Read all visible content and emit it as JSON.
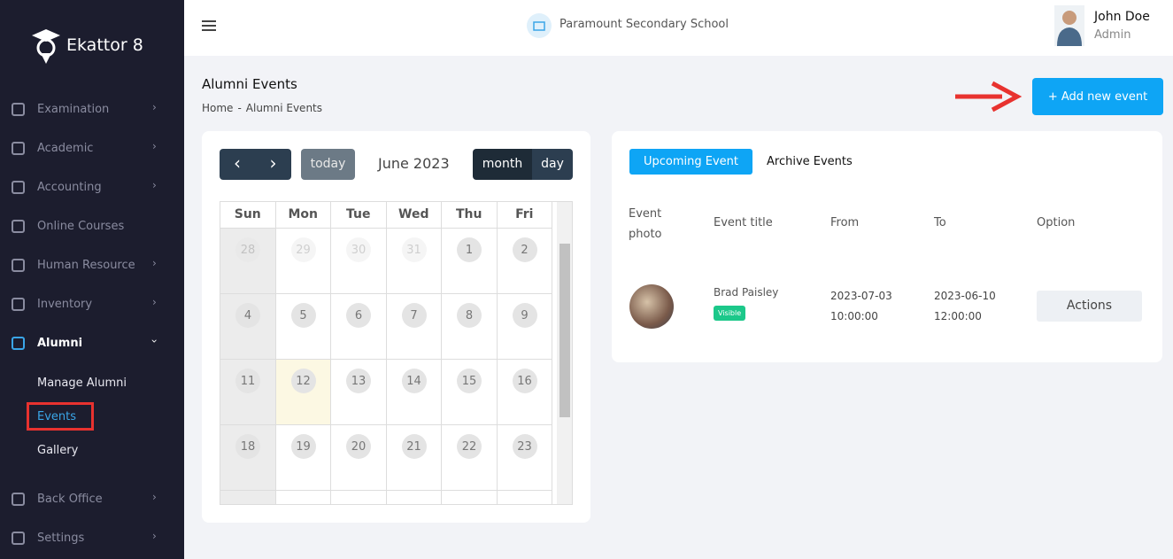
{
  "sidebar": {
    "brand": "Ekattor 8",
    "menu": [
      {
        "label": "Examination",
        "has_submenu": true
      },
      {
        "label": "Academic",
        "has_submenu": true
      },
      {
        "label": "Accounting",
        "has_submenu": true
      },
      {
        "label": "Online Courses",
        "has_submenu": false
      },
      {
        "label": "Human Resource",
        "has_submenu": true
      },
      {
        "label": "Inventory",
        "has_submenu": true
      },
      {
        "label": "Alumni",
        "has_submenu": true,
        "open": true,
        "submenu": [
          "Manage Alumni",
          "Events",
          "Gallery"
        ]
      },
      {
        "label": "Back Office",
        "has_submenu": true
      },
      {
        "label": "Settings",
        "has_submenu": true
      }
    ]
  },
  "header": {
    "school": "Paramount Secondary School",
    "user_name": "John Doe",
    "user_role": "Admin"
  },
  "page": {
    "title": "Alumni Events",
    "breadcrumb": [
      "Home",
      "Alumni Events"
    ],
    "breadcrumb_separator": "-",
    "add_button": "+ Add new event"
  },
  "calendar": {
    "today": "today",
    "month": "June 2023",
    "views": [
      "month",
      "day"
    ],
    "weekdays": [
      "Sun",
      "Mon",
      "Tue",
      "Wed",
      "Thu",
      "Fri"
    ],
    "weeks": [
      [
        28,
        29,
        30,
        31,
        1,
        2
      ],
      [
        4,
        5,
        6,
        7,
        8,
        9
      ],
      [
        11,
        12,
        13,
        14,
        15,
        16
      ],
      [
        18,
        19,
        20,
        21,
        22,
        23
      ]
    ]
  },
  "events": {
    "tabs": [
      "Upcoming Event",
      "Archive Events"
    ],
    "columns": [
      "Event photo",
      "Event title",
      "From",
      "To",
      "Option"
    ],
    "rows": [
      {
        "title": "Brad Paisley",
        "status": "Visible",
        "from": [
          "2023-07-03",
          "10:00:00"
        ],
        "to": [
          "2023-06-10",
          "12:00:00"
        ],
        "action": "Actions"
      }
    ]
  }
}
